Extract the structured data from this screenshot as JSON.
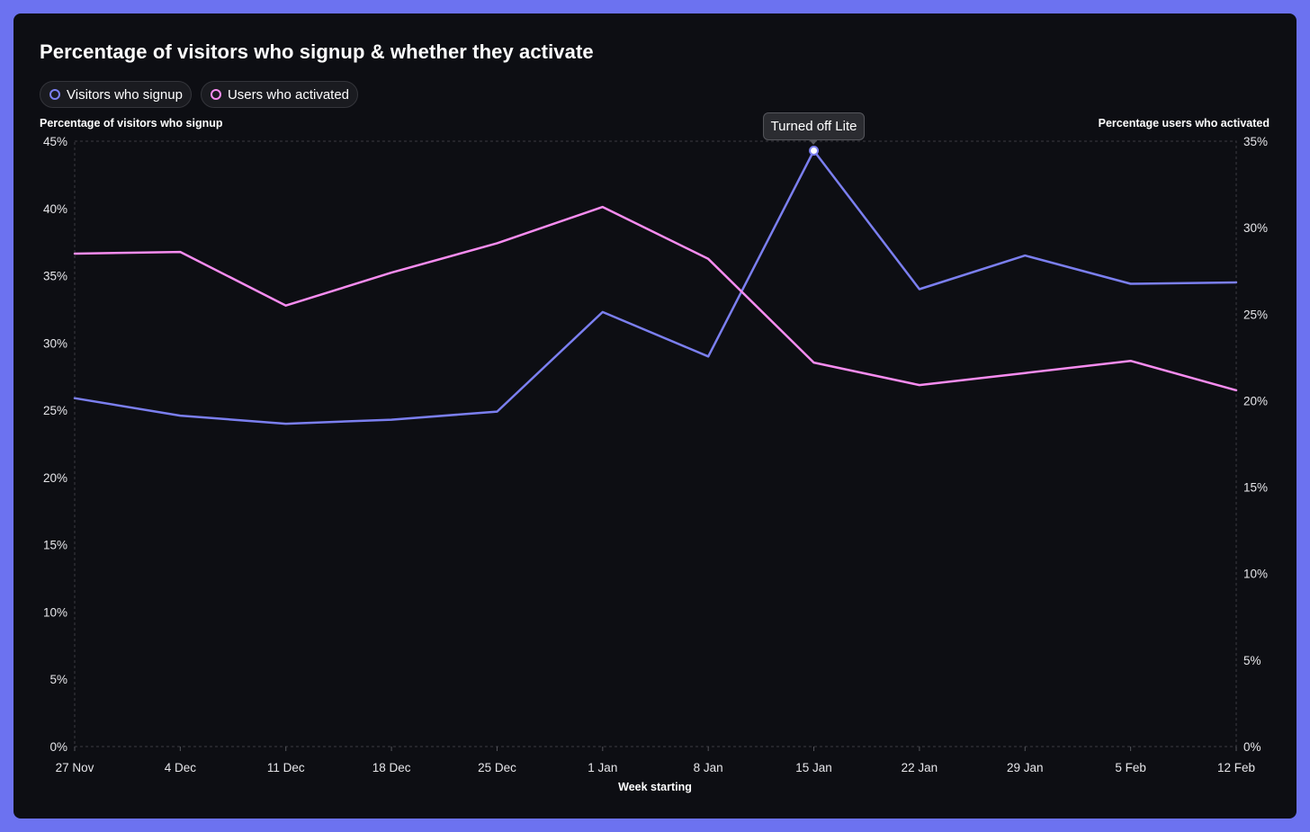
{
  "chart_data": {
    "type": "line",
    "title": "Percentage of visitors who signup & whether they activate",
    "xlabel": "Week starting",
    "ylabel": "Percentage of visitors who signup",
    "y2label": "Percentage users who activated",
    "categories": [
      "27 Nov",
      "4 Dec",
      "11 Dec",
      "18 Dec",
      "25 Dec",
      "1 Jan",
      "8 Jan",
      "15 Jan",
      "22 Jan",
      "29 Jan",
      "5 Feb",
      "12 Feb"
    ],
    "ylim": [
      0,
      45
    ],
    "y2lim": [
      0,
      35
    ],
    "yticks": [
      "0%",
      "5%",
      "10%",
      "15%",
      "20%",
      "25%",
      "30%",
      "35%",
      "40%",
      "45%"
    ],
    "y2ticks": [
      "0%",
      "5%",
      "10%",
      "15%",
      "20%",
      "25%",
      "30%",
      "35%"
    ],
    "series": [
      {
        "name": "Visitors who signup",
        "axis": "left",
        "color": "#7b7ff0",
        "values": [
          25.9,
          24.6,
          24.0,
          24.3,
          24.9,
          32.3,
          29.0,
          44.3,
          34.0,
          36.5,
          34.4,
          34.5
        ]
      },
      {
        "name": "Users who activated",
        "axis": "right",
        "color": "#f78cf0",
        "values": [
          28.5,
          28.6,
          25.5,
          27.4,
          29.1,
          31.2,
          28.2,
          22.2,
          20.9,
          21.6,
          22.3,
          20.6
        ]
      }
    ],
    "annotations": [
      {
        "text": "Turned off Lite",
        "series": 0,
        "index": 7
      }
    ],
    "grid": "dashed border only",
    "legend": "top-left"
  }
}
